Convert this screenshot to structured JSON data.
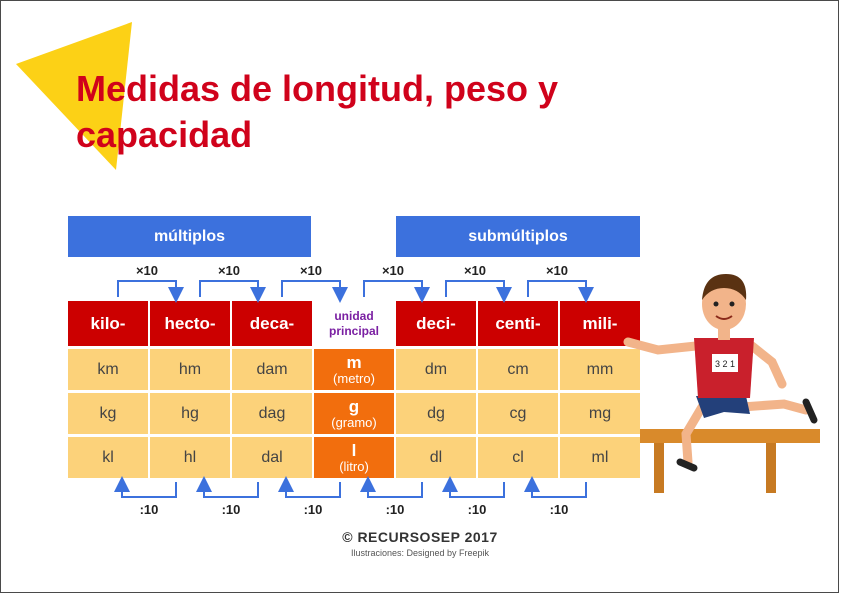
{
  "title": "Medidas de longitud, peso y capacidad",
  "headers": {
    "multiples": "múltiplos",
    "submultiples": "submúltiplos"
  },
  "multiply_label": "×10",
  "divide_label": ":10",
  "prefixes": [
    "kilo-",
    "hecto-",
    "deca-",
    "deci-",
    "centi-",
    "mili-"
  ],
  "unit_header": [
    "unidad",
    "principal"
  ],
  "rows": [
    {
      "left": [
        "km",
        "hm",
        "dam"
      ],
      "unit_symbol": "m",
      "unit_name": "(metro)",
      "right": [
        "dm",
        "cm",
        "mm"
      ]
    },
    {
      "left": [
        "kg",
        "hg",
        "dag"
      ],
      "unit_symbol": "g",
      "unit_name": "(gramo)",
      "right": [
        "dg",
        "cg",
        "mg"
      ]
    },
    {
      "left": [
        "kl",
        "hl",
        "dal"
      ],
      "unit_symbol": "l",
      "unit_name": "(litro)",
      "right": [
        "dl",
        "cl",
        "ml"
      ]
    }
  ],
  "footer": {
    "copyright": "© RECURSOSEP 2017",
    "credit": "Ilustraciones: Designed by Freepik"
  },
  "illustration": {
    "bib_number": "3 2 1"
  },
  "colors": {
    "title": "#d0021b",
    "header_blue": "#3c71dd",
    "prefix_red": "#cc0000",
    "cell_yellow": "#fcd27a",
    "unit_orange": "#f26e0d",
    "unit_header_purple": "#7a1fa2",
    "triangle_yellow": "#fcd116"
  }
}
